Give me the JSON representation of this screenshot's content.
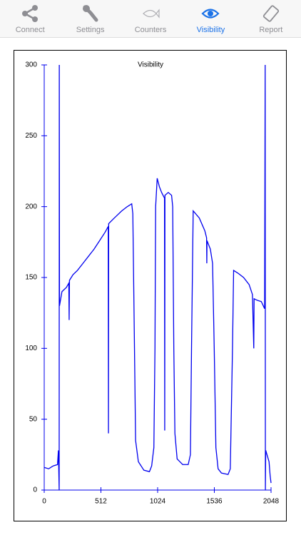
{
  "tabs": [
    "Connect",
    "Settings",
    "Counters",
    "Visibility",
    "Report"
  ],
  "chart_data": {
    "type": "line",
    "title": "Visibility",
    "color": "#0000ee",
    "xlim": [
      0,
      2048
    ],
    "xticks": [
      0,
      512,
      1024,
      1536,
      2048
    ],
    "ylim": [
      0,
      300
    ],
    "yticks": [
      0,
      50,
      100,
      150,
      200,
      250,
      300
    ],
    "x": [
      0,
      40,
      80,
      120,
      128,
      135,
      136,
      138,
      160,
      200,
      222,
      225,
      228,
      260,
      300,
      350,
      400,
      450,
      500,
      550,
      578,
      580,
      582,
      620,
      660,
      700,
      750,
      790,
      800,
      815,
      825,
      850,
      900,
      950,
      970,
      990,
      1000,
      1006,
      1020,
      1040,
      1060,
      1086,
      1088,
      1090,
      1120,
      1150,
      1160,
      1170,
      1180,
      1200,
      1250,
      1300,
      1320,
      1330,
      1345,
      1400,
      1450,
      1466,
      1468,
      1470,
      1500,
      1520,
      1535,
      1550,
      1570,
      1600,
      1660,
      1680,
      1700,
      1710,
      1750,
      1800,
      1850,
      1880,
      1892,
      1895,
      1920,
      1960,
      1990,
      1995,
      1997,
      2000,
      2030,
      2040,
      2048
    ],
    "values": [
      16,
      15,
      17,
      18,
      28,
      0,
      300,
      130,
      140,
      143,
      146,
      120,
      148,
      152,
      155,
      160,
      165,
      170,
      176,
      182,
      186,
      40,
      188,
      191,
      194,
      197,
      200,
      202,
      195,
      100,
      35,
      20,
      14,
      13,
      17,
      30,
      100,
      200,
      220,
      214,
      210,
      206,
      42,
      208,
      210,
      208,
      200,
      100,
      40,
      22,
      18,
      18,
      25,
      100,
      197,
      192,
      183,
      178,
      160,
      176,
      170,
      160,
      100,
      30,
      15,
      12,
      11,
      15,
      100,
      155,
      153,
      150,
      145,
      138,
      100,
      135,
      134,
      133,
      128,
      300,
      0,
      28,
      20,
      10,
      5
    ]
  }
}
